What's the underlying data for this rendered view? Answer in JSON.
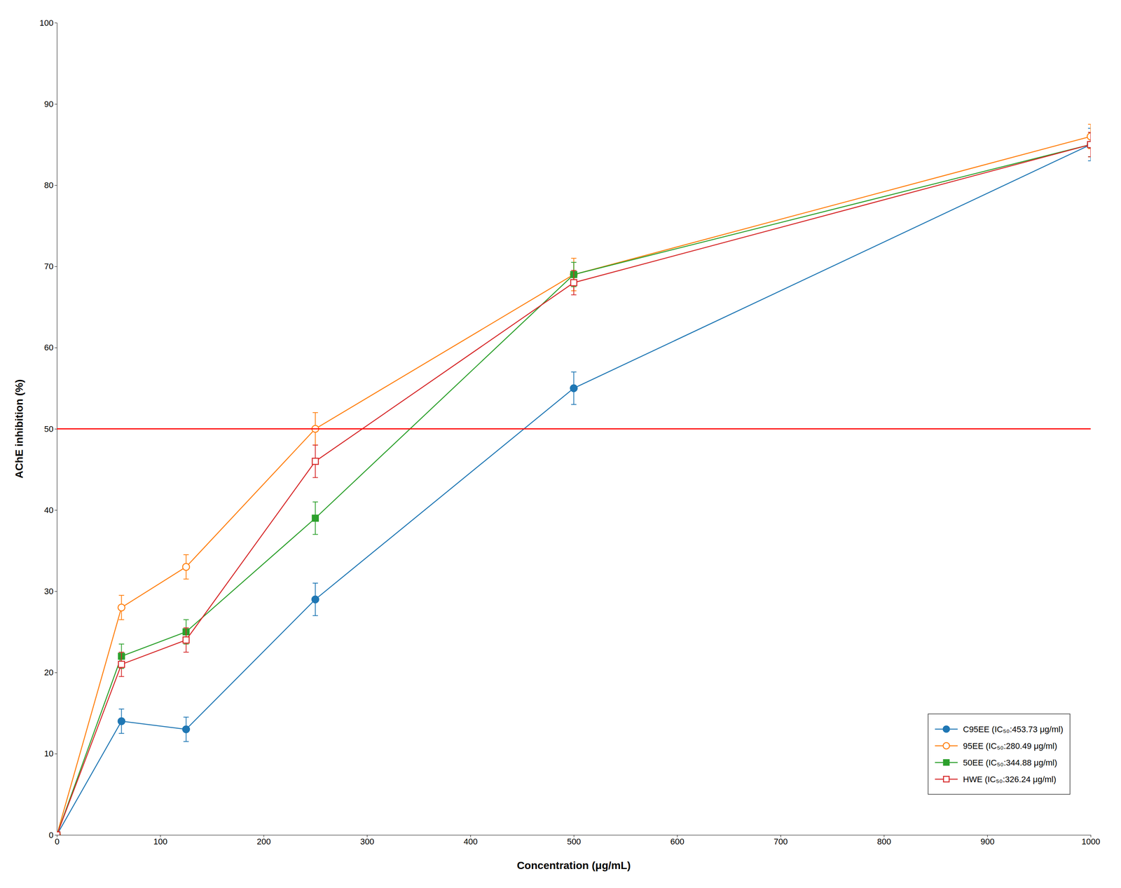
{
  "chart_data": {
    "type": "line",
    "x_label": "Concentration (μg/mL)",
    "y_label": "AChE inhibition (%)",
    "x": [
      0,
      62.5,
      125,
      250,
      500,
      1000
    ],
    "series": [
      {
        "name": "C95EE (IC₅₀:453.73 μg/ml)",
        "values": [
          0,
          14,
          13,
          29,
          55,
          85
        ],
        "yerr": [
          0,
          1.5,
          1.5,
          2,
          2,
          2
        ],
        "marker": "filled-circle"
      },
      {
        "name": "95EE (IC₅₀:280.49 μg/ml)",
        "values": [
          0,
          28,
          33,
          50,
          69,
          86
        ],
        "yerr": [
          0,
          1.5,
          1.5,
          2,
          2,
          1.5
        ],
        "marker": "open-circle"
      },
      {
        "name": "50EE (IC₅₀:344.88 μg/ml)",
        "values": [
          0,
          22,
          25,
          39,
          69,
          85
        ],
        "yerr": [
          0,
          1.5,
          1.5,
          2,
          1.5,
          1.5
        ],
        "marker": "filled-square"
      },
      {
        "name": "HWE (IC₅₀:326.24 μg/ml)",
        "values": [
          0,
          21,
          24,
          46,
          68,
          85
        ],
        "yerr": [
          0,
          1.5,
          1.5,
          2,
          1.5,
          1.5
        ],
        "marker": "open-square"
      }
    ],
    "hlines": [
      {
        "y": 50,
        "color": "red"
      }
    ],
    "xlim": [
      0,
      1000
    ],
    "ylim": [
      0,
      100
    ],
    "xticks": [
      0,
      100,
      200,
      300,
      400,
      500,
      600,
      700,
      800,
      900,
      1000
    ],
    "yticks": [
      0,
      10,
      20,
      30,
      40,
      50,
      60,
      70,
      80,
      90,
      100
    ],
    "grid": false,
    "legend": "lower right"
  }
}
